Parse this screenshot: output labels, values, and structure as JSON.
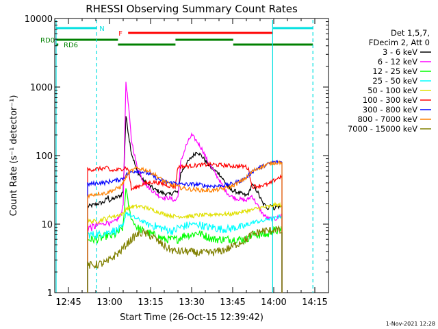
{
  "chart_data": {
    "type": "line",
    "title": "RHESSI Observing Summary Count Rates",
    "xlabel": "Start Time (26-Oct-15 12:39:42)",
    "ylabel": "Count Rate (s⁻¹ detector⁻¹)",
    "x_unit": "minutes of day (UT)",
    "xlim": [
      760,
      860
    ],
    "ylim": [
      1,
      10000
    ],
    "yscale": "log",
    "xticks": [
      {
        "v": 765,
        "label": "12:45"
      },
      {
        "v": 780,
        "label": "13:00"
      },
      {
        "v": 795,
        "label": "13:15"
      },
      {
        "v": 810,
        "label": "13:30"
      },
      {
        "v": 825,
        "label": "13:45"
      },
      {
        "v": 840,
        "label": "14:00"
      },
      {
        "v": 855,
        "label": "14:15"
      }
    ],
    "yticks": [
      {
        "v": 1,
        "label": "1"
      },
      {
        "v": 10,
        "label": "10"
      },
      {
        "v": 100,
        "label": "100"
      },
      {
        "v": 1000,
        "label": "1000"
      },
      {
        "v": 10000,
        "label": "10000"
      }
    ],
    "legend_header": [
      "Det 1,5,7,",
      "FDecim 2, Att 0"
    ],
    "legend_position": "right",
    "series": [
      {
        "name": "3 - 6 keV",
        "color": "#000000",
        "x": [
          772,
          774,
          776,
          778,
          779.5,
          780,
          782,
          784,
          785,
          786,
          787,
          788,
          790,
          792,
          794,
          796,
          798,
          800,
          802,
          804,
          805,
          806,
          808,
          810,
          812,
          814,
          816,
          818,
          820,
          822,
          824,
          826,
          828,
          830,
          831,
          832,
          834,
          836,
          838,
          839,
          840,
          841,
          842,
          843
        ],
        "y": [
          18,
          19,
          20,
          21,
          25,
          22,
          24,
          26,
          30,
          380,
          200,
          110,
          60,
          45,
          38,
          33,
          30,
          28,
          27,
          30,
          28,
          55,
          75,
          95,
          115,
          95,
          75,
          62,
          55,
          42,
          32,
          30,
          28,
          26,
          29,
          38,
          30,
          20,
          17,
          20,
          17,
          18,
          18,
          18
        ]
      },
      {
        "name": "6 - 12 keV",
        "color": "#ff00ff",
        "x": [
          772,
          774,
          776,
          778,
          779.5,
          780,
          782,
          784,
          785,
          786,
          787,
          788,
          790,
          792,
          794,
          796,
          798,
          800,
          802,
          804,
          805,
          806,
          808,
          810,
          812,
          814,
          816,
          818,
          820,
          822,
          824,
          826,
          828,
          830,
          831,
          832,
          834,
          836,
          838,
          839,
          840,
          841,
          842,
          843
        ],
        "y": [
          9,
          9,
          10,
          10,
          11,
          10,
          11,
          13,
          20,
          1200,
          500,
          170,
          70,
          45,
          35,
          30,
          26,
          24,
          24,
          22,
          25,
          80,
          140,
          200,
          160,
          120,
          80,
          60,
          45,
          32,
          26,
          24,
          23,
          22,
          24,
          26,
          19,
          14,
          12,
          12,
          12,
          12,
          13,
          14
        ]
      },
      {
        "name": "12 - 25 keV",
        "color": "#00ff00",
        "x": [
          772,
          774,
          776,
          778,
          779.5,
          780,
          782,
          784,
          785,
          786,
          787,
          788,
          790,
          792,
          794,
          796,
          798,
          800,
          802,
          804,
          805,
          806,
          808,
          810,
          812,
          814,
          816,
          818,
          820,
          822,
          824,
          826,
          828,
          830,
          831,
          832,
          834,
          836,
          838,
          839,
          840,
          841,
          842,
          843
        ],
        "y": [
          6,
          6,
          6,
          6.5,
          7,
          6.5,
          7,
          8,
          9,
          35,
          18,
          12,
          9,
          8,
          7.5,
          7,
          6.5,
          6,
          6,
          6,
          6,
          6.5,
          7,
          7,
          7.5,
          7,
          6.5,
          6,
          6,
          6,
          6,
          6,
          6,
          6,
          6.5,
          7,
          7,
          7,
          7,
          8,
          8,
          8,
          8,
          9
        ]
      },
      {
        "name": "25 - 50 keV",
        "color": "#00ffff",
        "x": [
          772,
          774,
          776,
          778,
          779.5,
          780,
          782,
          784,
          785,
          786,
          787,
          788,
          790,
          792,
          794,
          796,
          798,
          800,
          802,
          804,
          805,
          806,
          808,
          810,
          812,
          814,
          816,
          818,
          820,
          822,
          824,
          826,
          828,
          830,
          831,
          832,
          834,
          836,
          838,
          839,
          840,
          841,
          842,
          843
        ],
        "y": [
          7,
          7,
          7,
          7.5,
          7.5,
          8,
          8,
          8.5,
          9,
          15,
          14,
          13,
          12,
          11,
          10,
          9.5,
          9,
          8.5,
          8,
          8,
          9,
          9,
          9.5,
          10,
          10,
          9.5,
          9,
          9,
          8.5,
          8.5,
          8.5,
          9,
          9,
          9.5,
          10,
          10.5,
          11,
          11,
          12,
          12,
          12,
          12.5,
          13,
          13
        ]
      },
      {
        "name": "50 - 100 keV",
        "color": "#e0e000",
        "x": [
          772,
          774,
          776,
          778,
          779.5,
          780,
          782,
          784,
          785,
          786,
          787,
          788,
          790,
          792,
          794,
          796,
          798,
          800,
          802,
          804,
          805,
          806,
          808,
          810,
          812,
          814,
          816,
          818,
          820,
          822,
          824,
          826,
          828,
          830,
          831,
          832,
          834,
          836,
          838,
          839,
          840,
          841,
          842,
          843
        ],
        "y": [
          11,
          11,
          11,
          12,
          12,
          13,
          13,
          14,
          14,
          17,
          17,
          18,
          18,
          18,
          17,
          16,
          15,
          14,
          13.5,
          13,
          13,
          13,
          13,
          13,
          13.5,
          13.5,
          13.5,
          14,
          14,
          14,
          14,
          14.5,
          15,
          15.5,
          16,
          16,
          17,
          17.5,
          18,
          18,
          19,
          19,
          19,
          19
        ]
      },
      {
        "name": "100 - 300 keV",
        "color": "#ff0000",
        "x": [
          772,
          774,
          776,
          778,
          779.5,
          780,
          782,
          784,
          785,
          786,
          787,
          788,
          790,
          792,
          794,
          796,
          798,
          800,
          802,
          804,
          805,
          806,
          808,
          810,
          812,
          814,
          816,
          818,
          820,
          822,
          824,
          826,
          828,
          830,
          831,
          832,
          834,
          836,
          838,
          839,
          840,
          841,
          842,
          843
        ],
        "y": [
          62,
          63,
          64,
          65,
          66,
          60,
          61,
          63,
          65,
          67,
          60,
          32,
          35,
          38,
          40,
          41,
          40,
          38,
          36,
          35,
          68,
          69,
          70,
          71,
          72,
          73,
          74,
          74,
          73,
          72,
          71,
          70,
          70,
          69,
          60,
          35,
          36,
          37,
          38,
          40,
          43,
          46,
          48,
          50
        ]
      },
      {
        "name": "300 - 800 keV",
        "color": "#0000ff",
        "x": [
          772,
          774,
          776,
          778,
          779.5,
          780,
          782,
          784,
          785,
          786,
          787,
          788,
          790,
          792,
          794,
          796,
          798,
          800,
          802,
          804,
          805,
          806,
          808,
          810,
          812,
          814,
          816,
          818,
          820,
          822,
          824,
          826,
          828,
          830,
          831,
          832,
          834,
          836,
          838,
          839,
          840,
          841,
          842,
          843
        ],
        "y": [
          38,
          39,
          40,
          40,
          41,
          42,
          43,
          45,
          47,
          52,
          55,
          58,
          60,
          58,
          55,
          50,
          45,
          42,
          40,
          40,
          40,
          38,
          38,
          38,
          38,
          37,
          36,
          36,
          36,
          37,
          38,
          40,
          43,
          48,
          52,
          58,
          65,
          70,
          75,
          78,
          80,
          80,
          81,
          80
        ]
      },
      {
        "name": "800 - 7000 keV",
        "color": "#ff8000",
        "x": [
          772,
          774,
          776,
          778,
          779.5,
          780,
          782,
          784,
          785,
          786,
          787,
          788,
          790,
          792,
          794,
          796,
          798,
          800,
          802,
          804,
          805,
          806,
          808,
          810,
          812,
          814,
          816,
          818,
          820,
          822,
          824,
          826,
          828,
          830,
          831,
          832,
          834,
          836,
          838,
          839,
          840,
          841,
          842,
          843
        ],
        "y": [
          26,
          27,
          28,
          28,
          29,
          30,
          32,
          35,
          40,
          48,
          55,
          60,
          65,
          64,
          60,
          55,
          48,
          42,
          38,
          36,
          35,
          34,
          33,
          32,
          32,
          31,
          31,
          31,
          32,
          33,
          35,
          38,
          42,
          48,
          52,
          58,
          65,
          70,
          75,
          77,
          78,
          79,
          80,
          80
        ]
      },
      {
        "name": "7000 - 15000 keV",
        "color": "#808000",
        "x": [
          772,
          774,
          776,
          778,
          779.5,
          780,
          782,
          784,
          785,
          786,
          787,
          788,
          790,
          792,
          794,
          796,
          798,
          800,
          802,
          804,
          805,
          806,
          808,
          810,
          812,
          814,
          816,
          818,
          820,
          822,
          824,
          826,
          828,
          830,
          831,
          832,
          834,
          836,
          838,
          839,
          840,
          841,
          842,
          843
        ],
        "y": [
          2.5,
          2.5,
          2.6,
          2.7,
          2.8,
          3,
          3.5,
          4,
          4.5,
          5,
          5.5,
          6,
          7,
          7.5,
          7,
          6.5,
          5.5,
          4.8,
          4.3,
          4,
          4,
          4,
          4,
          3.9,
          3.8,
          3.8,
          3.8,
          3.9,
          4,
          4.2,
          4.5,
          5,
          5.5,
          6,
          6.5,
          7,
          7.5,
          8,
          8,
          8,
          8.5,
          8.5,
          8,
          7.5
        ]
      }
    ],
    "vertical_lines": [
      {
        "x": 760.5,
        "color": "#00e0e0",
        "style": "solid"
      },
      {
        "x": 775.3,
        "color": "#00e0e0",
        "style": "dashed"
      },
      {
        "x": 839.6,
        "color": "#00e0e0",
        "style": "solid"
      },
      {
        "x": 854.3,
        "color": "#00e0e0",
        "style": "dashed"
      }
    ],
    "flag_bars": [
      {
        "label": "N",
        "color": "#00e0e0",
        "row": 1,
        "segments": [
          [
            760.5,
            775.3
          ],
          [
            839.6,
            854.3
          ]
        ]
      },
      {
        "label": "F",
        "color": "#ff0000",
        "row": 2,
        "segments": [
          [
            786.8,
            839.6
          ]
        ]
      },
      {
        "label": "RD0",
        "color": "#008000",
        "row": 3,
        "segments": [
          [
            760.5,
            783.1
          ],
          [
            804.1,
            825.2
          ]
        ]
      },
      {
        "label": "RD6",
        "color": "#008000",
        "row": 4,
        "segments": [
          [
            760.5,
            761.3
          ],
          [
            783.1,
            804.1
          ],
          [
            825.2,
            854.3
          ]
        ]
      }
    ],
    "footer_date": "1-Nov-2021 12:28"
  }
}
